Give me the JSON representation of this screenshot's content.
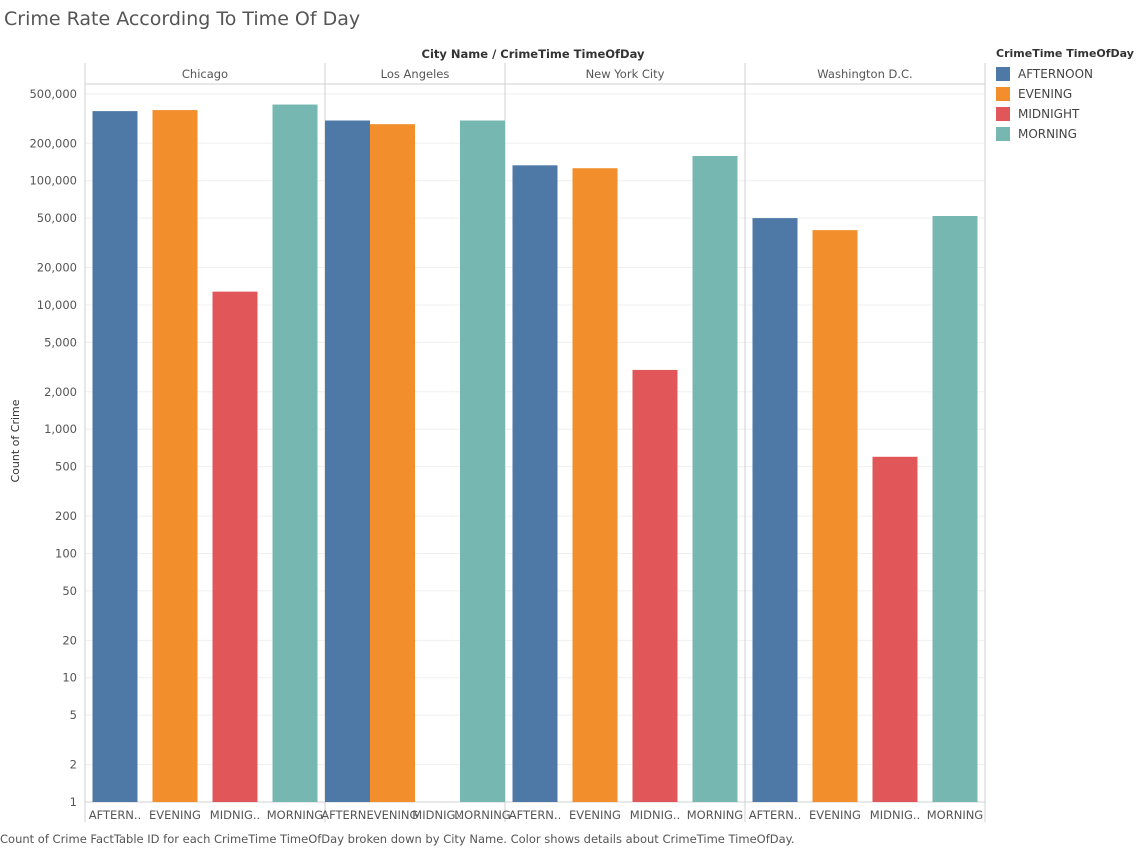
{
  "title": "Crime Rate According To Time Of Day",
  "caption": "Count of Crime FactTable ID for each CrimeTime TimeOfDay broken down by City Name.  Color shows details about CrimeTime TimeOfDay.",
  "legend": {
    "title": "CrimeTime TimeOfDay",
    "items": [
      {
        "label": "AFTERNOON",
        "color": "#4e79a7"
      },
      {
        "label": "EVENING",
        "color": "#f28e2b"
      },
      {
        "label": "MIDNIGHT",
        "color": "#e15759"
      },
      {
        "label": "MORNING",
        "color": "#76b7b2"
      }
    ]
  },
  "chart_data": {
    "type": "bar",
    "header": "City Name  /  CrimeTime TimeOfDay",
    "ylabel": "Count of Crime",
    "yscale": "log",
    "ylim": [
      1,
      600000
    ],
    "yticks": [
      1,
      2,
      5,
      10,
      20,
      50,
      100,
      200,
      500,
      1000,
      2000,
      5000,
      10000,
      20000,
      50000,
      100000,
      200000,
      500000
    ],
    "ytick_labels": [
      "1",
      "2",
      "5",
      "10",
      "20",
      "50",
      "100",
      "200",
      "500",
      "1,000",
      "2,000",
      "5,000",
      "10,000",
      "20,000",
      "50,000",
      "100,000",
      "200,000",
      "500,000"
    ],
    "categories": [
      "AFTERNOON",
      "EVENING",
      "MIDNIGHT",
      "MORNING"
    ],
    "category_tick_labels": [
      "AFTERN..",
      "EVENING",
      "MIDNIG..",
      "MORNING"
    ],
    "panels": [
      {
        "name": "Chicago",
        "values": [
          363000,
          370000,
          12800,
          410000
        ]
      },
      {
        "name": "Los Angeles",
        "values": [
          305000,
          285000,
          null,
          305000
        ]
      },
      {
        "name": "New York City",
        "values": [
          133000,
          126000,
          3000,
          158000
        ]
      },
      {
        "name": "Washington D.C.",
        "values": [
          50000,
          40000,
          600,
          52000
        ]
      }
    ],
    "colors": [
      "#4e79a7",
      "#f28e2b",
      "#e15759",
      "#76b7b2"
    ],
    "grid": true
  }
}
